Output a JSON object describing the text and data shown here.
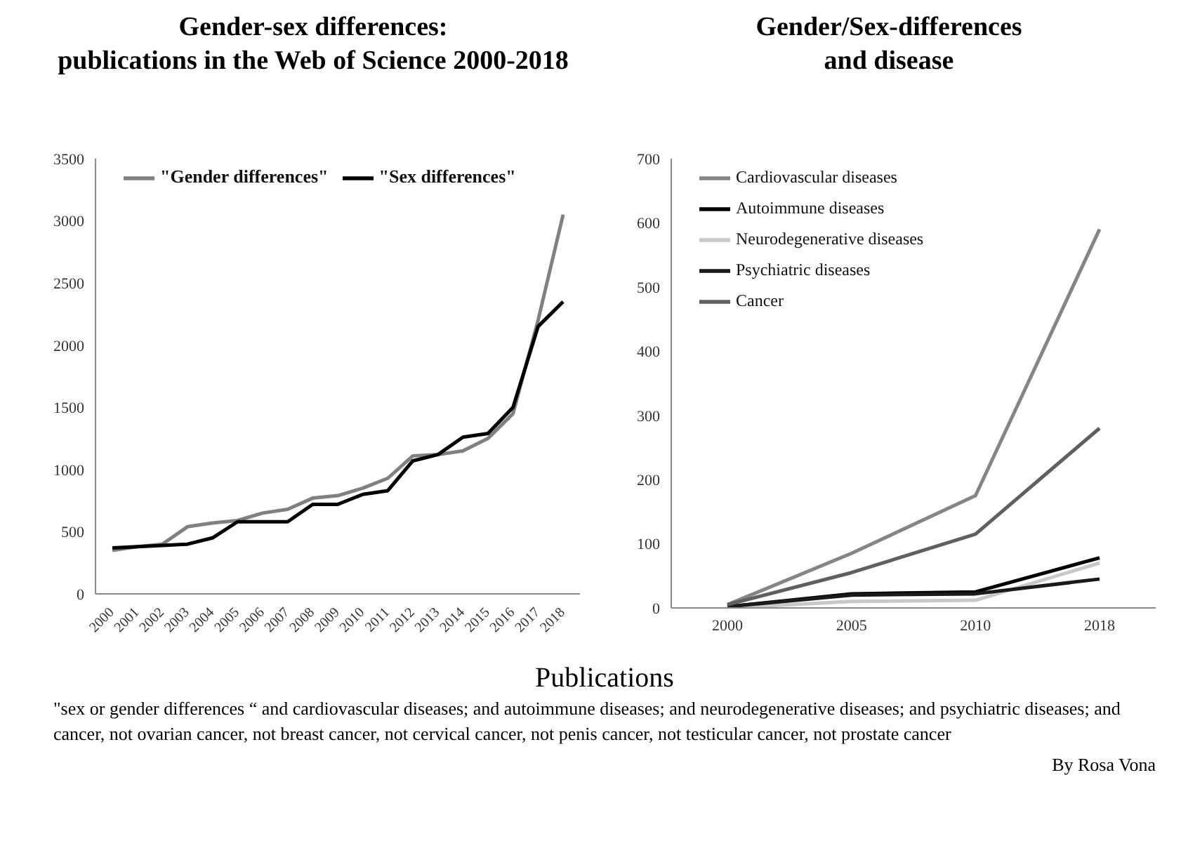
{
  "chart_data": [
    {
      "type": "line",
      "title": "Gender-sex differences:\npublications in the Web of Science 2000-2018",
      "categories": [
        "2000",
        "2001",
        "2002",
        "2003",
        "2004",
        "2005",
        "2006",
        "2007",
        "2008",
        "2009",
        "2010",
        "2011",
        "2012",
        "2013",
        "2014",
        "2015",
        "2016",
        "2017",
        "2018"
      ],
      "series": [
        {
          "name": "\"Gender differences\"",
          "color": "#808080",
          "values": [
            350,
            380,
            400,
            540,
            570,
            590,
            650,
            680,
            770,
            790,
            850,
            930,
            1110,
            1120,
            1150,
            1250,
            1450,
            2200,
            3050
          ]
        },
        {
          "name": "\"Sex differences\"",
          "color": "#000000",
          "values": [
            370,
            380,
            390,
            400,
            450,
            580,
            580,
            580,
            720,
            720,
            800,
            830,
            1070,
            1120,
            1260,
            1290,
            1500,
            2150,
            2350
          ]
        }
      ],
      "ylim": [
        0,
        3500
      ],
      "yticks": [
        0,
        500,
        1000,
        1500,
        2000,
        2500,
        3000,
        3500
      ],
      "grid": false,
      "legend": "top",
      "marker": "none"
    },
    {
      "type": "line",
      "title": "Gender/Sex-differences\nand disease",
      "categories": [
        "2000",
        "2005",
        "2010",
        "2018"
      ],
      "series": [
        {
          "name": "Cardiovascular diseases",
          "color": "#858585",
          "values": [
            5,
            85,
            175,
            590
          ]
        },
        {
          "name": "Autoimmune diseases",
          "color": "#000000",
          "values": [
            2,
            22,
            25,
            78
          ]
        },
        {
          "name": "Neurodegenerative diseases",
          "color": "#c8c8c8",
          "values": [
            0,
            10,
            12,
            70
          ]
        },
        {
          "name": "Psychiatric diseases",
          "color": "#1a1a1a",
          "values": [
            2,
            20,
            22,
            45
          ]
        },
        {
          "name": "Cancer",
          "color": "#5f5f5f",
          "values": [
            5,
            55,
            115,
            280
          ]
        }
      ],
      "ylim": [
        0,
        700
      ],
      "yticks": [
        0,
        100,
        200,
        300,
        400,
        500,
        600,
        700
      ],
      "grid": false,
      "legend": "top left",
      "marker": "none",
      "annotations": [
        "Publications",
        "\"sex or gender differences “ and cardiovascular diseases; and autoimmune diseases; and neurodegenerative diseases;  and psychiatric diseases; and cancer, not ovarian cancer, not breast cancer, not cervical cancer, not penis cancer, not testicular cancer, not prostate cancer",
        "By Rosa Vona"
      ]
    }
  ]
}
